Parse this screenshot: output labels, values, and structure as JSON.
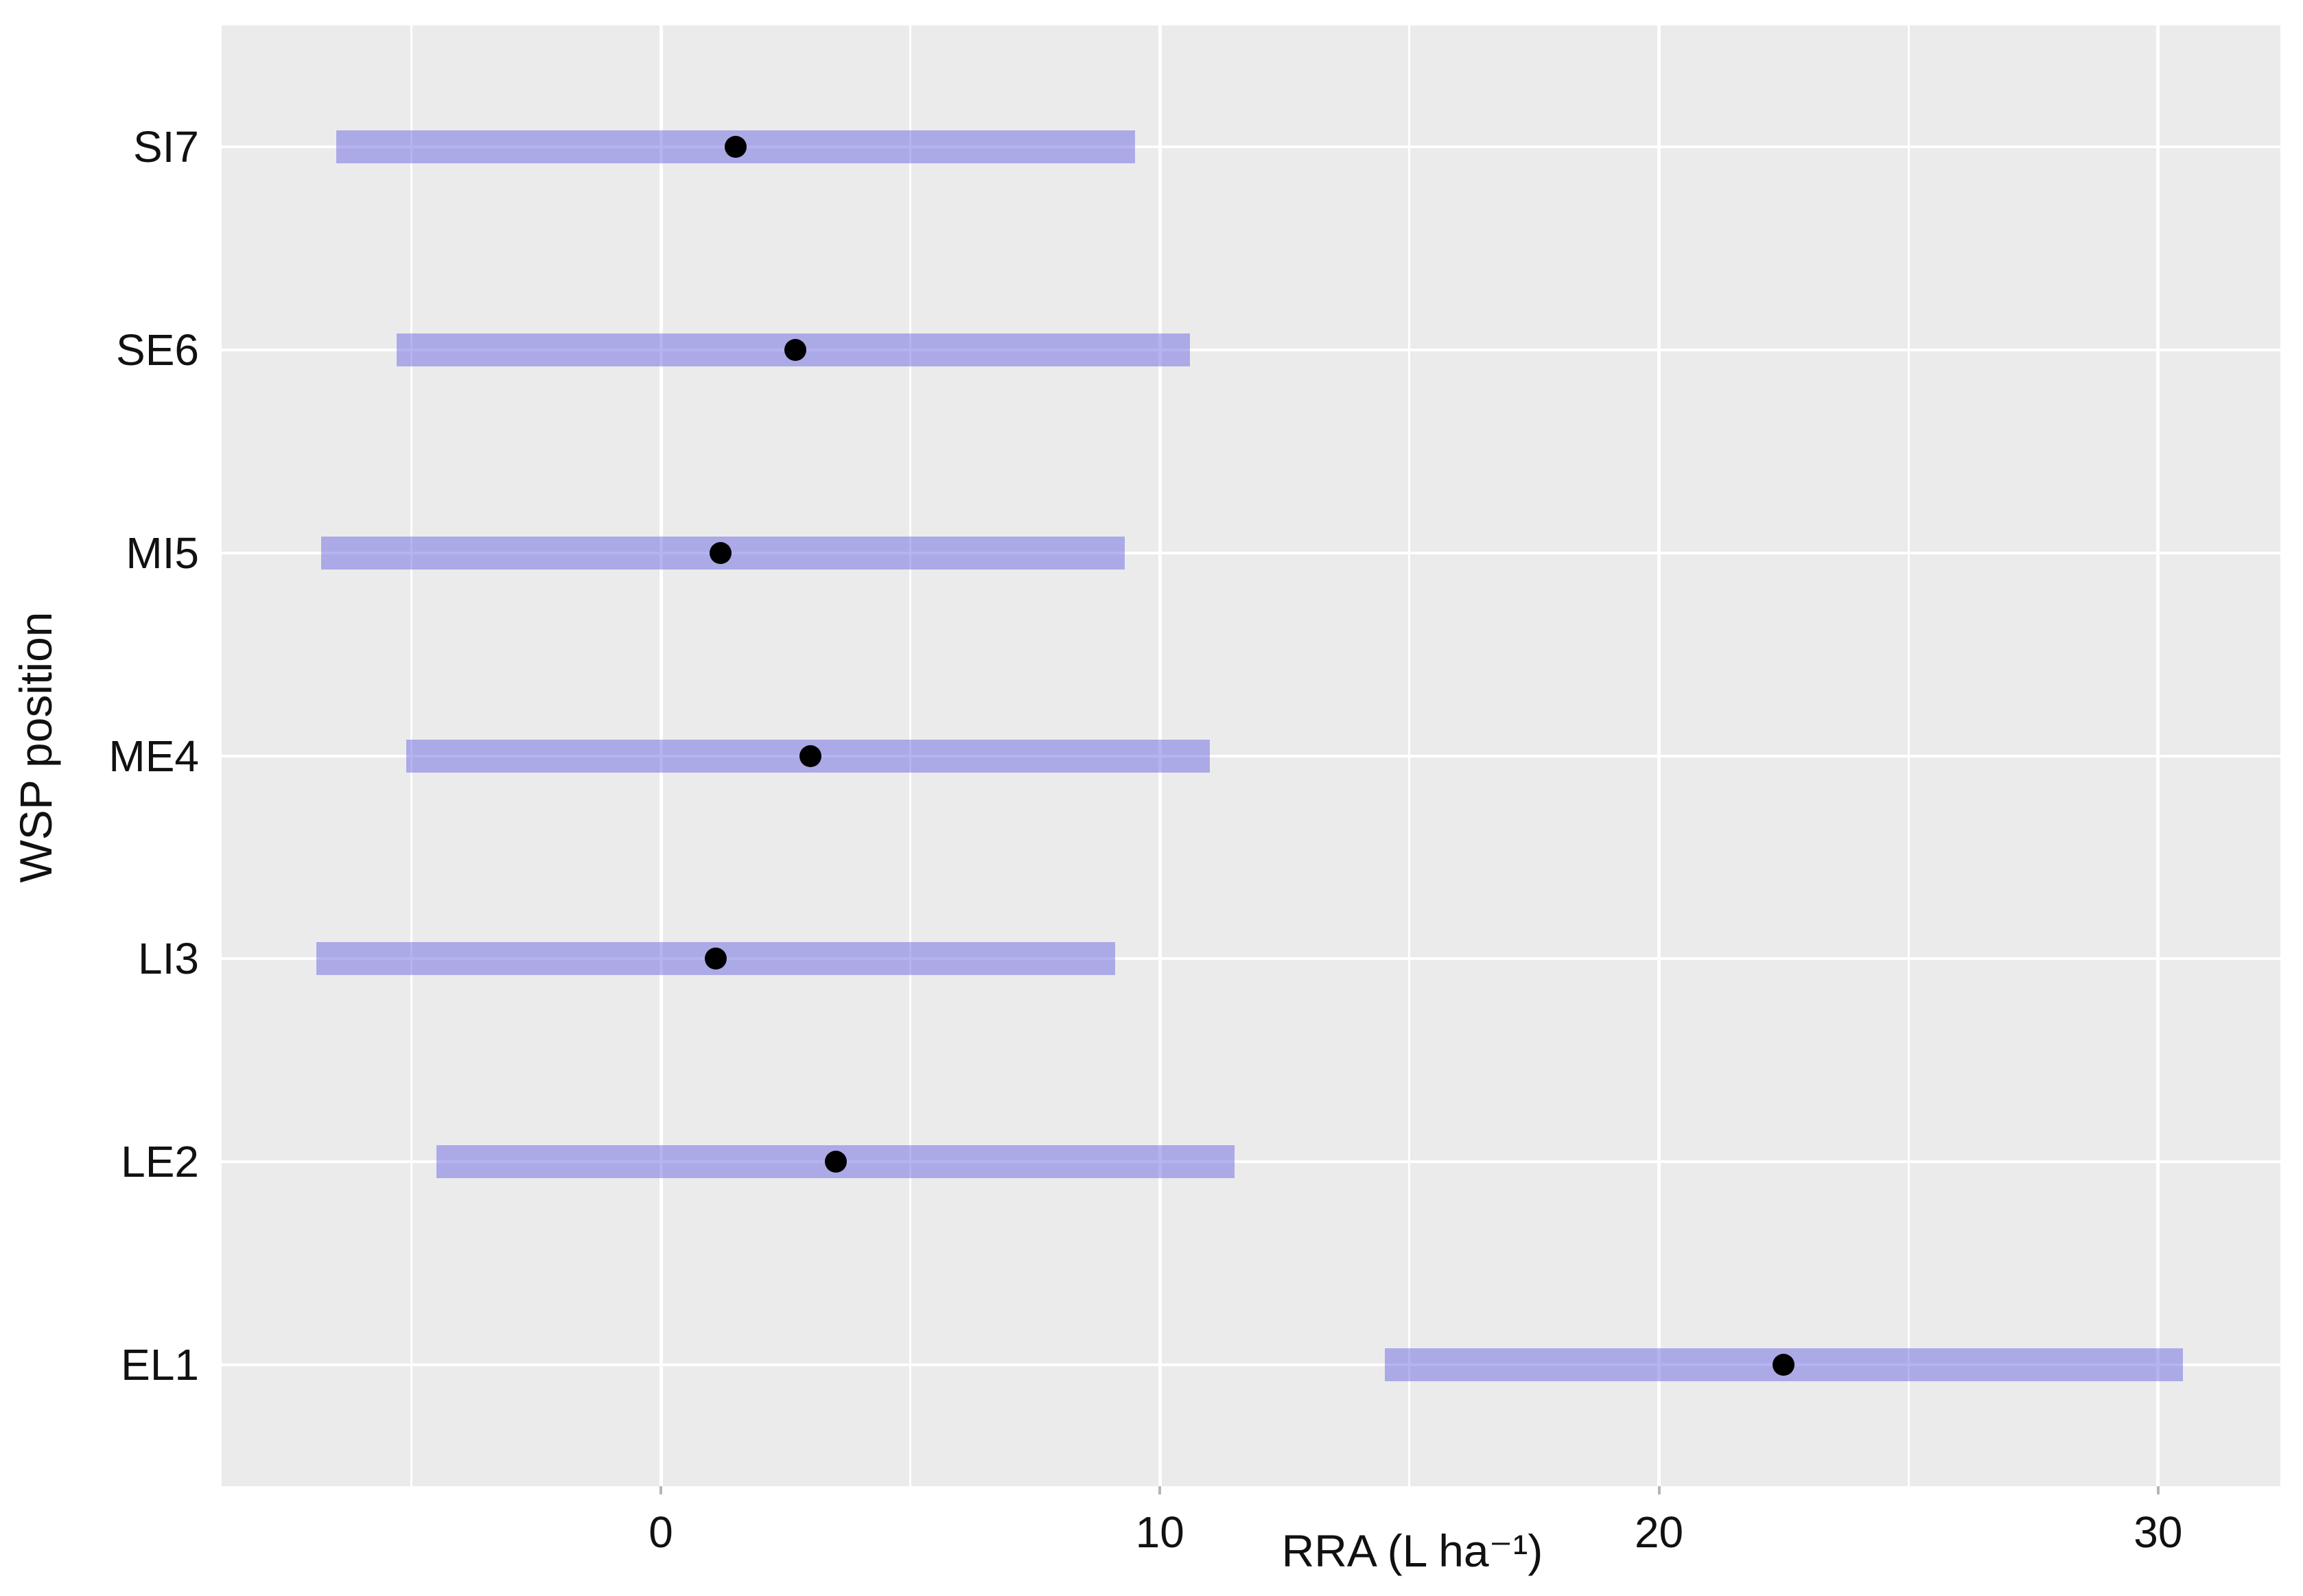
{
  "chart_data": {
    "type": "interval",
    "subtype": "horizontal-pointrange",
    "title": "",
    "xlabel": "RRA (L ha⁻¹)",
    "ylabel": "WSP position",
    "xlim": [
      -8.8,
      32.45
    ],
    "x_major_ticks": [
      0,
      10,
      20,
      30
    ],
    "x_minor_ticks": [
      -5,
      5,
      15,
      25
    ],
    "x_tick_labels": [
      "0",
      "10",
      "20",
      "30"
    ],
    "grid": "on",
    "legend": "none",
    "categories": [
      "SI7",
      "SE6",
      "MI5",
      "ME4",
      "LI3",
      "LE2",
      "EL1"
    ],
    "series": [
      {
        "name": "SI7",
        "low": -6.5,
        "high": 9.5,
        "point": 1.5
      },
      {
        "name": "SE6",
        "low": -5.3,
        "high": 10.6,
        "point": 2.7
      },
      {
        "name": "MI5",
        "low": -6.8,
        "high": 9.3,
        "point": 1.2
      },
      {
        "name": "ME4",
        "low": -5.1,
        "high": 11.0,
        "point": 3.0
      },
      {
        "name": "LI3",
        "low": -6.9,
        "high": 9.1,
        "point": 1.1
      },
      {
        "name": "LE2",
        "low": -4.5,
        "high": 11.5,
        "point": 3.5
      },
      {
        "name": "EL1",
        "low": 14.5,
        "high": 30.5,
        "point": 22.5
      }
    ],
    "colors": {
      "panel_background": "#EBEBEB",
      "grid": "#FFFFFF",
      "interval_fill": "rgba(115,109,229,0.52)",
      "point": "#000000",
      "text": "#111111"
    }
  }
}
